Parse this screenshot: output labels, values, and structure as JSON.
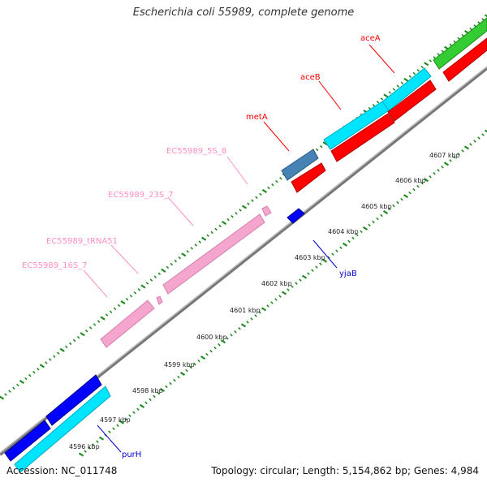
{
  "title": "Escherichia coli 55989, complete genome",
  "footer": {
    "accession": "Accession: NC_011748",
    "summary": "Topology: circular; Length: 5,154,862 bp; Genes: 4,984"
  },
  "colors": {
    "rrna": "#f5a6cf",
    "rrna_label": "#ff8fc2",
    "gene_red": "#ff0000",
    "gene_cyan": "#00e5ff",
    "gene_blue": "#0000ff",
    "gene_green": "#33cc33",
    "gene_steel": "#4682b4",
    "tick_green": "#228b22",
    "backbone": "#888888"
  },
  "scale_labels": [
    {
      "text": "4596 kbp"
    },
    {
      "text": "4597 kbp"
    },
    {
      "text": "4598 kbp"
    },
    {
      "text": "4599 kbp"
    },
    {
      "text": "4600 kbp"
    },
    {
      "text": "4601 kbp"
    },
    {
      "text": "4602 kbp"
    },
    {
      "text": "4603 kbp"
    },
    {
      "text": "4604 kbp"
    },
    {
      "text": "4605 kbp"
    },
    {
      "text": "4606 kbp"
    },
    {
      "text": "4607 kbp"
    }
  ],
  "gene_labels": [
    {
      "text": "aceA",
      "color": "#ff0000"
    },
    {
      "text": "aceB",
      "color": "#ff0000"
    },
    {
      "text": "metA",
      "color": "#ff0000"
    },
    {
      "text": "EC55989_5S_8",
      "color": "#ff8fc2"
    },
    {
      "text": "EC55989_23S_7",
      "color": "#ff8fc2"
    },
    {
      "text": "EC55989_tRNA51",
      "color": "#ff8fc2"
    },
    {
      "text": "EC55989_16S_7",
      "color": "#ff8fc2"
    },
    {
      "text": "yjaB",
      "color": "#0000cc"
    },
    {
      "text": "purH",
      "color": "#0000cc"
    }
  ]
}
